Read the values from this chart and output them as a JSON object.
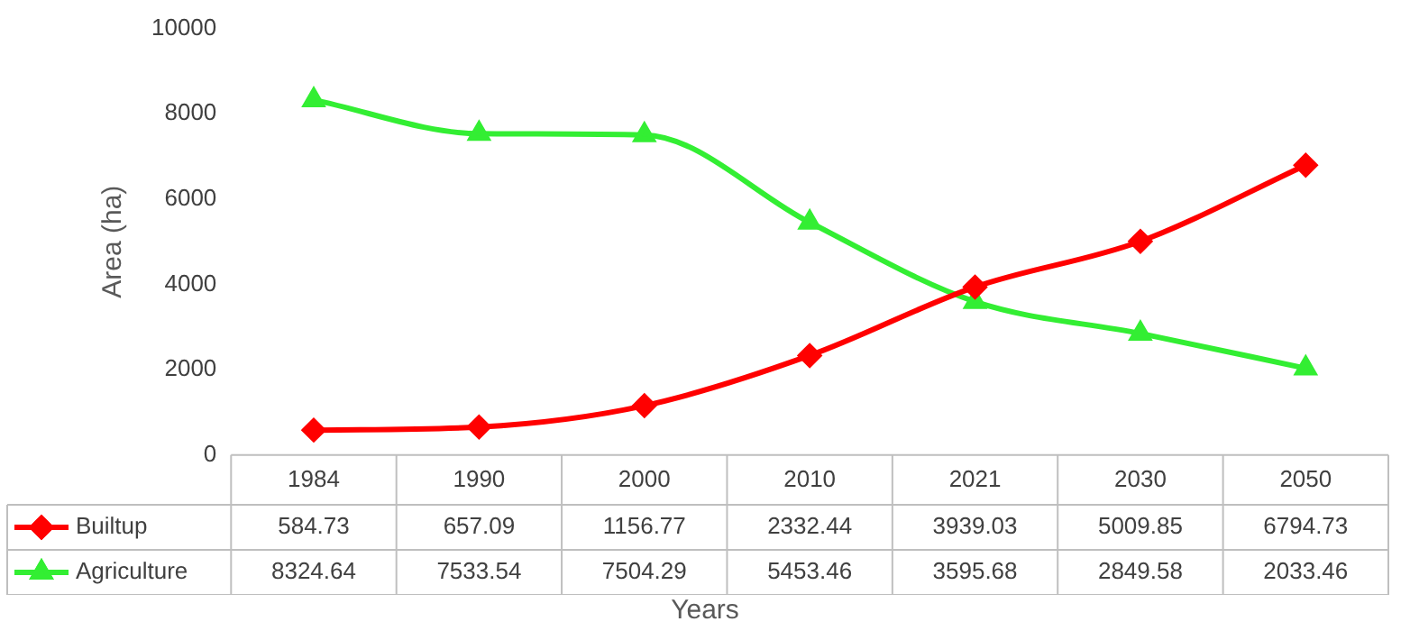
{
  "chart_data": {
    "type": "line",
    "xlabel": "Years",
    "ylabel": "Area (ha)",
    "categories": [
      "1984",
      "1990",
      "2000",
      "2010",
      "2021",
      "2030",
      "2050"
    ],
    "series": [
      {
        "name": "Builtup",
        "color": "#ff0000",
        "marker": "diamond",
        "values": [
          584.73,
          657.09,
          1156.77,
          2332.44,
          3939.03,
          5009.85,
          6794.73
        ]
      },
      {
        "name": "Agriculture",
        "color": "#33ee33",
        "marker": "triangle",
        "values": [
          8324.64,
          7533.54,
          7504.29,
          5453.46,
          3595.68,
          2849.58,
          2033.46
        ]
      }
    ],
    "ylim": [
      0,
      10000
    ],
    "yticks": [
      0,
      2000,
      4000,
      6000,
      8000,
      10000
    ],
    "grid": false,
    "legend": "bottom",
    "data_labels": true
  }
}
